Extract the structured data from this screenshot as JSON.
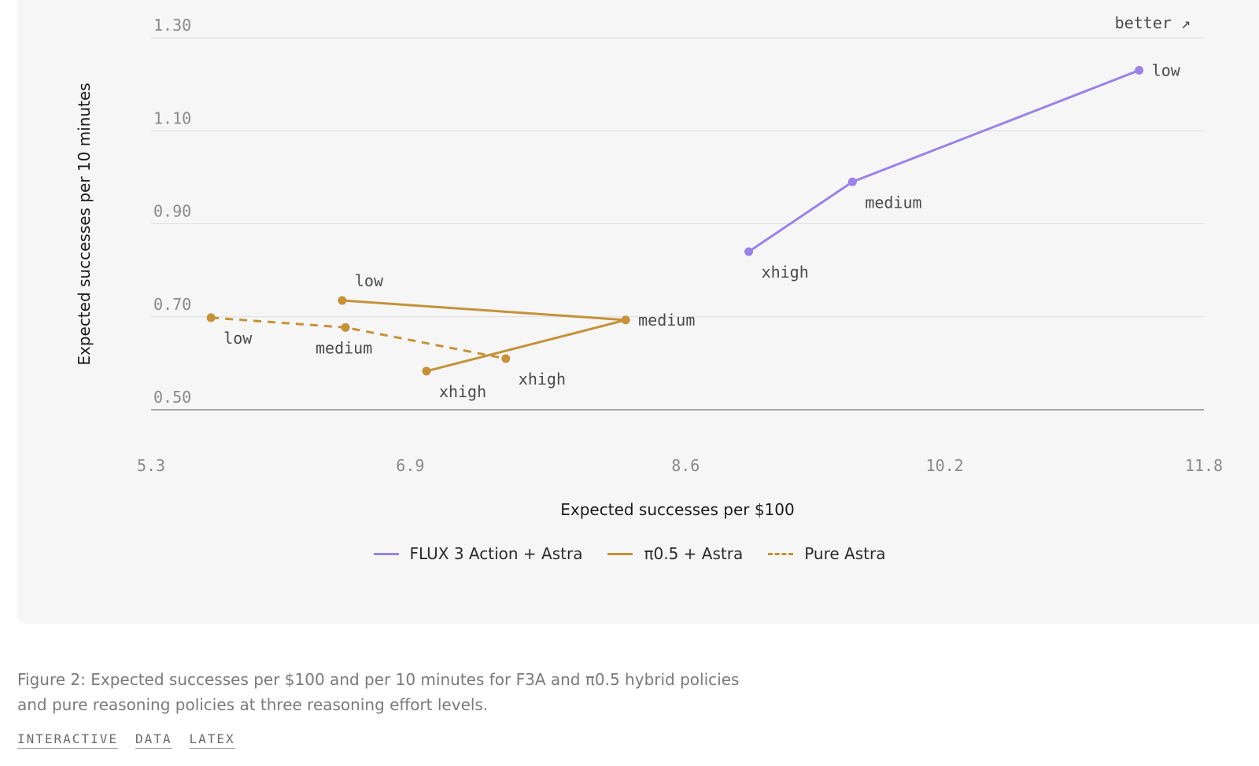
{
  "chart_data": {
    "type": "line",
    "title": "",
    "xlabel": "Expected successes per $100",
    "ylabel": "Expected successes per 10 minutes",
    "xlim": [
      5.3,
      11.8
    ],
    "ylim": [
      0.5,
      1.3
    ],
    "xticks": [
      "5.3",
      "6.9",
      "8.6",
      "10.2",
      "11.8"
    ],
    "yticks": [
      "1.30",
      "1.10",
      "0.90",
      "0.70",
      "0.50"
    ],
    "corner_label": "better ↗",
    "grid": true,
    "legend_position": "bottom",
    "series": [
      {
        "name": "FLUX 3 Action + Astra",
        "color": "#9b82e6",
        "style": "solid",
        "points": [
          {
            "label": "low",
            "x": 11.4,
            "y": 1.23
          },
          {
            "label": "medium",
            "x": 9.63,
            "y": 0.99
          },
          {
            "label": "xhigh",
            "x": 8.99,
            "y": 0.84
          }
        ]
      },
      {
        "name": "π0.5 + Astra",
        "color": "#c5923a",
        "style": "solid",
        "points": [
          {
            "label": "low",
            "x": 6.48,
            "y": 0.735
          },
          {
            "label": "medium",
            "x": 8.23,
            "y": 0.693
          },
          {
            "label": "xhigh",
            "x": 7.0,
            "y": 0.583
          }
        ]
      },
      {
        "name": "Pure Astra",
        "color": "#c5923a",
        "style": "dashed",
        "points": [
          {
            "label": "low",
            "x": 5.67,
            "y": 0.698
          },
          {
            "label": "medium",
            "x": 6.5,
            "y": 0.677
          },
          {
            "label": "xhigh",
            "x": 7.49,
            "y": 0.61
          }
        ]
      }
    ]
  },
  "caption": "Figure 2: Expected successes per $100 and per 10 minutes for F3A and π0.5 hybrid policies and pure reasoning policies at three reasoning effort levels.",
  "links": [
    "INTERACTIVE",
    "DATA",
    "LATEX"
  ]
}
